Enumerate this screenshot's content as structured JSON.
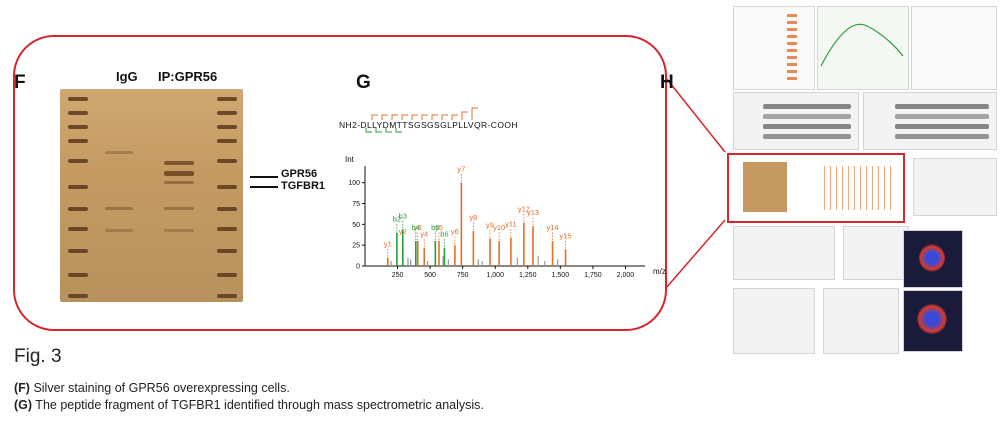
{
  "panels": {
    "f_letter": "F",
    "g_letter": "G",
    "h_letter": "H"
  },
  "gel": {
    "lane_igg": "IgG",
    "lane_ip": "IP:GPR56",
    "band_gpr56": "GPR56",
    "band_tgfbr1": "TGFBR1"
  },
  "peptide": {
    "sequence": "NH2-DLLYDMTTSGSGSGLPLLVQR-COOH",
    "prefix": "NH2-D",
    "suffix": "-COOH"
  },
  "chart_data": {
    "type": "bar",
    "title": "",
    "xlabel": "m/z",
    "ylabel": "Int",
    "xlim": [
      0,
      2150
    ],
    "ylim": [
      0,
      120
    ],
    "xticks": [
      250,
      500,
      750,
      1000,
      1250,
      1500,
      1750,
      2000
    ],
    "xtick_labels": [
      "250",
      "500",
      "750",
      "1,000",
      "1,250",
      "1,500",
      "1,750",
      "2,000"
    ],
    "yticks": [
      0,
      25,
      50,
      75,
      100
    ],
    "peaks_b": [
      {
        "mz": 245,
        "int": 40,
        "label": "b2"
      },
      {
        "mz": 290,
        "int": 44,
        "label": "b3"
      },
      {
        "mz": 390,
        "int": 30,
        "label": "b4"
      },
      {
        "mz": 540,
        "int": 30,
        "label": "b5"
      },
      {
        "mz": 610,
        "int": 22,
        "label": "b6"
      }
    ],
    "peaks_y": [
      {
        "mz": 175,
        "int": 10,
        "label": "y1"
      },
      {
        "mz": 290,
        "int": 25,
        "label": "y2"
      },
      {
        "mz": 405,
        "int": 30,
        "label": "y3"
      },
      {
        "mz": 455,
        "int": 22,
        "label": "y4"
      },
      {
        "mz": 568,
        "int": 30,
        "label": "y5"
      },
      {
        "mz": 690,
        "int": 25,
        "label": "y6"
      },
      {
        "mz": 740,
        "int": 100,
        "label": "y7"
      },
      {
        "mz": 832,
        "int": 42,
        "label": "y8"
      },
      {
        "mz": 960,
        "int": 33,
        "label": "y9"
      },
      {
        "mz": 1030,
        "int": 30,
        "label": "y10"
      },
      {
        "mz": 1120,
        "int": 34,
        "label": "y11"
      },
      {
        "mz": 1220,
        "int": 52,
        "label": "y12"
      },
      {
        "mz": 1290,
        "int": 48,
        "label": "y13"
      },
      {
        "mz": 1440,
        "int": 30,
        "label": "y14"
      },
      {
        "mz": 1540,
        "int": 20,
        "label": "y15"
      }
    ],
    "unlabeled_peaks": [
      {
        "mz": 200,
        "int": 6
      },
      {
        "mz": 330,
        "int": 10
      },
      {
        "mz": 350,
        "int": 8
      },
      {
        "mz": 480,
        "int": 6
      },
      {
        "mz": 600,
        "int": 12
      },
      {
        "mz": 640,
        "int": 8
      },
      {
        "mz": 870,
        "int": 8
      },
      {
        "mz": 900,
        "int": 6
      },
      {
        "mz": 1170,
        "int": 10
      },
      {
        "mz": 1330,
        "int": 12
      },
      {
        "mz": 1380,
        "int": 6
      },
      {
        "mz": 1480,
        "int": 8
      }
    ]
  },
  "caption": {
    "fig_label": "Fig. 3",
    "f_tag": "(F)",
    "f_text": " Silver staining of GPR56 overexpressing cells.",
    "g_tag": "(G)",
    "g_text": " The peptide fragment of TGFBR1 identified through mass spectrometric analysis."
  },
  "colors": {
    "callout": "#d8252b",
    "y_ion": "#e0702b",
    "b_ion": "#2a9d3a"
  }
}
